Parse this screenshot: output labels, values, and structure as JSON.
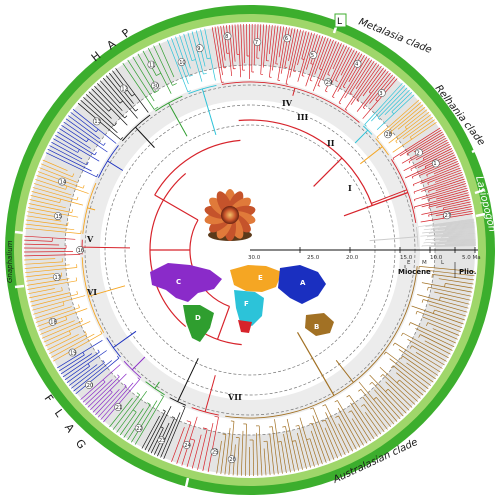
{
  "clades": {
    "hap": "H A P",
    "metalasia": "Metalasia clade",
    "relhania": "Relhania clade",
    "lasiopogon": "Lasiopogon",
    "gnaphalium": "Gnaphalium",
    "flag": "F L A G",
    "australasian": "Australasian clade",
    "l_box": "L"
  },
  "roman_labels": [
    "I",
    "II",
    "III",
    "IV",
    "V",
    "VI",
    "VII"
  ],
  "axis": {
    "ticks": [
      "30.0",
      "25.0",
      "20.0",
      "15.0",
      "10.0",
      "5.0 Ma"
    ],
    "epochs": {
      "miocene": "Miocene",
      "plio": "Plio."
    },
    "sub": {
      "e": "E",
      "m": "M",
      "l": "L"
    }
  },
  "map_regions": [
    "A",
    "B",
    "C",
    "D",
    "E",
    "F"
  ],
  "node_labels": [
    "1",
    "2",
    "3",
    "4",
    "5",
    "6",
    "7",
    "8",
    "9",
    "10",
    "11",
    "12",
    "13",
    "14",
    "15",
    "16",
    "17",
    "18",
    "19",
    "20",
    "21",
    "22",
    "23",
    "24",
    "25",
    "26",
    "27",
    "28",
    "29",
    "30"
  ],
  "colors": {
    "ring": "#3cae2d",
    "ring_light": "#9fd66a",
    "red": "#d7232b",
    "brown": "#a27124",
    "orange": "#f5a623",
    "blue": "#1a2fc0",
    "purple": "#8a2bc9",
    "cyan": "#2cc3d9",
    "green": "#2f9e2f",
    "grey": "#cccccc"
  }
}
